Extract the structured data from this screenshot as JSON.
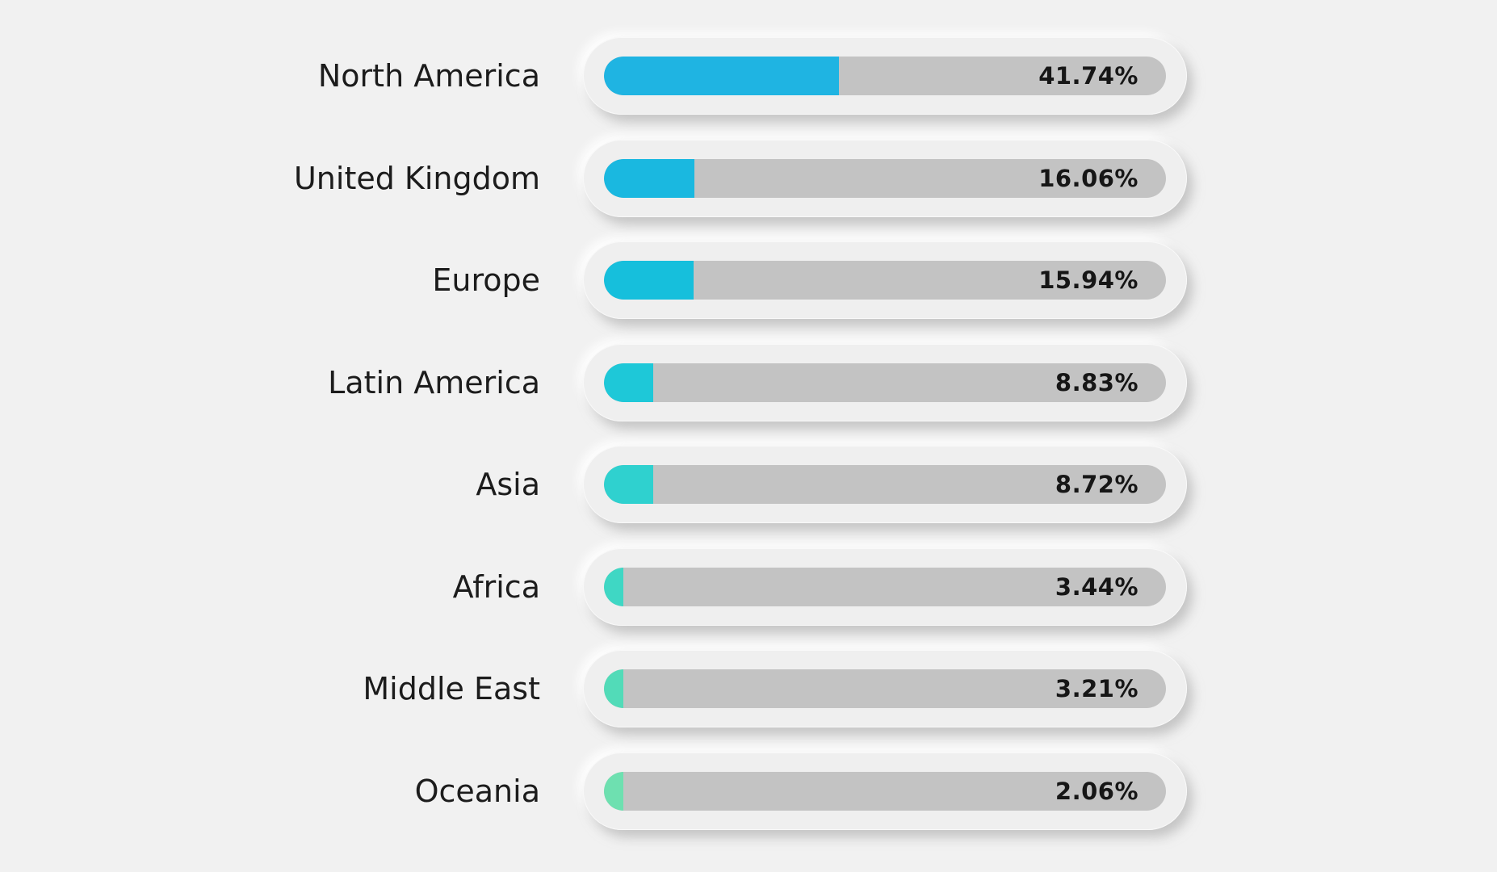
{
  "chart_data": {
    "type": "bar",
    "orientation": "horizontal",
    "categories": [
      "North America",
      "United Kingdom",
      "Europe",
      "Latin America",
      "Asia",
      "Africa",
      "Middle East",
      "Oceania"
    ],
    "values": [
      41.74,
      16.06,
      15.94,
      8.83,
      8.72,
      3.44,
      3.21,
      2.06
    ],
    "value_labels": [
      "41.74%",
      "16.06%",
      "15.94%",
      "8.83%",
      "8.72%",
      "3.44%",
      "3.21%",
      "2.06%"
    ],
    "xlim": [
      0,
      100
    ],
    "grid": false,
    "legend": "none",
    "colors": [
      "#1fb4e2",
      "#1ab8e0",
      "#16bfdc",
      "#1ec8d8",
      "#2fd1cf",
      "#3fd7c4",
      "#52dbb8",
      "#6ee0b0"
    ],
    "track_color": "#c3c3c3",
    "background": "#f1f1f1"
  }
}
